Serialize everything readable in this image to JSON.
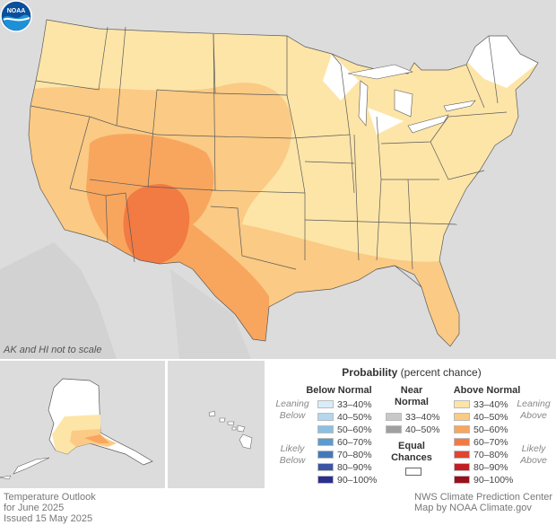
{
  "map": {
    "scale_note": "AK and HI not to scale",
    "logo_text": "NOAA"
  },
  "legend": {
    "title_bold": "Probability",
    "title_rest": "(percent chance)",
    "below_header": "Below Normal",
    "near_header": "Near Normal",
    "above_header": "Above Normal",
    "equal_chances": "Equal Chances",
    "leaning_below": "Leaning Below",
    "likely_below": "Likely Below",
    "leaning_above": "Leaning Above",
    "likely_above": "Likely Above",
    "below_items": [
      {
        "label": "33–40%",
        "color": "#d9edf8"
      },
      {
        "label": "40–50%",
        "color": "#b3d7ef"
      },
      {
        "label": "50–60%",
        "color": "#8cc0e3"
      },
      {
        "label": "60–70%",
        "color": "#5b9bd0"
      },
      {
        "label": "70–80%",
        "color": "#4379ba"
      },
      {
        "label": "80–90%",
        "color": "#3c54a5"
      },
      {
        "label": "90–100%",
        "color": "#2b2f8f"
      }
    ],
    "near_items": [
      {
        "label": "33–40%",
        "color": "#c8c8c8"
      },
      {
        "label": "40–50%",
        "color": "#a0a0a0"
      }
    ],
    "above_items": [
      {
        "label": "33–40%",
        "color": "#fde5a8"
      },
      {
        "label": "40–50%",
        "color": "#fbca84"
      },
      {
        "label": "50–60%",
        "color": "#f8a65e"
      },
      {
        "label": "60–70%",
        "color": "#f27a43"
      },
      {
        "label": "70–80%",
        "color": "#e0452f"
      },
      {
        "label": "80–90%",
        "color": "#c41e24"
      },
      {
        "label": "90–100%",
        "color": "#9a0f1d"
      }
    ]
  },
  "footer": {
    "left_line1": "Temperature Outlook",
    "left_line2": "for June 2025",
    "left_line3": "Issued 15 May 2025",
    "right_line1": "NWS Climate Prediction Center",
    "right_line2": "Map by NOAA Climate.gov"
  },
  "colors": {
    "background_land": "#dcdcdc",
    "equal_chances": "#ffffff",
    "state_border": "#5a5a5a"
  }
}
